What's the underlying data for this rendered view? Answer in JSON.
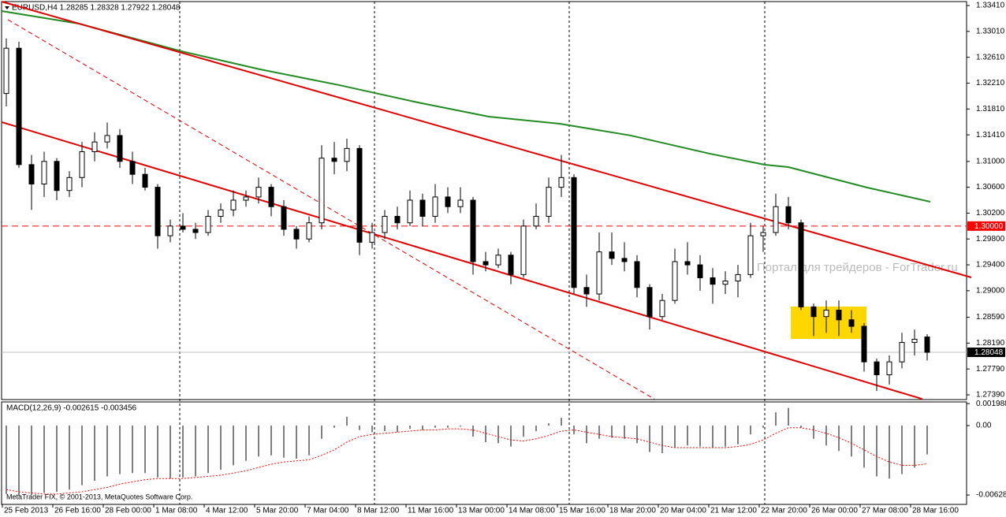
{
  "chart_data": {
    "type": "candlestick",
    "title": "EURUSD,H4 1.28285 1.28328 1.27922 1.28048",
    "watermark": "Портал для трейдеров - ForTrader.ru",
    "footer": "MetaTrader FIX, © 2001-2013, MetaQuotes Software Corp.",
    "ylim": [
      1.27317,
      1.33471
    ],
    "yticks": [
      {
        "value": 1.3341,
        "label": "1.33410"
      },
      {
        "value": 1.3301,
        "label": "1.33010"
      },
      {
        "value": 1.3261,
        "label": "1.32610"
      },
      {
        "value": 1.3221,
        "label": "1.32210"
      },
      {
        "value": 1.3181,
        "label": "1.31810"
      },
      {
        "value": 1.3141,
        "label": "1.31410"
      },
      {
        "value": 1.31,
        "label": "1.31000"
      },
      {
        "value": 1.306,
        "label": "1.30600"
      },
      {
        "value": 1.302,
        "label": "1.30200"
      },
      {
        "value": 1.298,
        "label": "1.29800"
      },
      {
        "value": 1.294,
        "label": "1.29400"
      },
      {
        "value": 1.29,
        "label": "1.29000"
      },
      {
        "value": 1.2859,
        "label": "1.28590"
      },
      {
        "value": 1.2819,
        "label": "1.28190"
      },
      {
        "value": 1.2779,
        "label": "1.27790"
      },
      {
        "value": 1.2739,
        "label": "1.27390"
      }
    ],
    "time_labels": [
      "25 Feb 2013",
      "26 Feb 16:00",
      "28 Feb 00:00",
      "1 Mar 08:00",
      "4 Mar 12:00",
      "5 Mar 20:00",
      "7 Mar 04:00",
      "8 Mar 12:00",
      "11 Mar 16:00",
      "13 Mar 00:00",
      "14 Mar 08:00",
      "15 Mar 16:00",
      "18 Mar 20:00",
      "20 Mar 04:00",
      "21 Mar 12:00",
      "22 Mar 20:00",
      "26 Mar 00:00",
      "27 Mar 08:00",
      "28 Mar 16:00"
    ],
    "candles": [
      [
        1.3205,
        1.329,
        1.3185,
        1.3275
      ],
      [
        1.3275,
        1.3285,
        1.309,
        1.3095
      ],
      [
        1.3095,
        1.311,
        1.3025,
        1.3065
      ],
      [
        1.3065,
        1.3115,
        1.3045,
        1.31
      ],
      [
        1.31,
        1.3105,
        1.304,
        1.3055
      ],
      [
        1.3055,
        1.3085,
        1.3045,
        1.3075
      ],
      [
        1.3075,
        1.313,
        1.306,
        1.3115
      ],
      [
        1.3115,
        1.3145,
        1.31,
        1.313
      ],
      [
        1.313,
        1.316,
        1.312,
        1.314
      ],
      [
        1.314,
        1.315,
        1.309,
        1.31
      ],
      [
        1.31,
        1.3115,
        1.3065,
        1.308
      ],
      [
        1.308,
        1.309,
        1.3055,
        1.306
      ],
      [
        1.306,
        1.3065,
        1.2965,
        1.2985
      ],
      [
        1.2985,
        1.301,
        1.2975,
        1.3
      ],
      [
        1.3,
        1.302,
        1.299,
        1.2995
      ],
      [
        1.2995,
        1.3005,
        1.298,
        1.299
      ],
      [
        1.299,
        1.3025,
        1.2985,
        1.3015
      ],
      [
        1.3015,
        1.3035,
        1.3005,
        1.3025
      ],
      [
        1.3025,
        1.3055,
        1.3015,
        1.304
      ],
      [
        1.304,
        1.3055,
        1.303,
        1.3045
      ],
      [
        1.3045,
        1.3075,
        1.3035,
        1.306
      ],
      [
        1.306,
        1.3065,
        1.3015,
        1.303
      ],
      [
        1.303,
        1.304,
        1.2985,
        1.2995
      ],
      [
        1.2995,
        1.3,
        1.2965,
        1.298
      ],
      [
        1.298,
        1.3015,
        1.2975,
        1.3005
      ],
      [
        1.3005,
        1.3125,
        1.2995,
        1.3105
      ],
      [
        1.3105,
        1.313,
        1.308,
        1.31
      ],
      [
        1.31,
        1.3135,
        1.3085,
        1.312
      ],
      [
        1.312,
        1.3125,
        1.2955,
        1.2975
      ],
      [
        1.2975,
        1.3005,
        1.2965,
        1.299
      ],
      [
        1.299,
        1.3025,
        1.298,
        1.3015
      ],
      [
        1.3015,
        1.303,
        1.2995,
        1.3005
      ],
      [
        1.3005,
        1.3055,
        1.3,
        1.304
      ],
      [
        1.304,
        1.305,
        1.3,
        1.3015
      ],
      [
        1.3015,
        1.3065,
        1.3005,
        1.3045
      ],
      [
        1.3045,
        1.306,
        1.302,
        1.303
      ],
      [
        1.303,
        1.306,
        1.302,
        1.304
      ],
      [
        1.304,
        1.3045,
        1.2925,
        1.2945
      ],
      [
        1.2945,
        1.296,
        1.293,
        1.294
      ],
      [
        1.294,
        1.2965,
        1.2935,
        1.2955
      ],
      [
        1.2955,
        1.296,
        1.291,
        1.2925
      ],
      [
        1.2925,
        1.301,
        1.292,
        1.3
      ],
      [
        1.3,
        1.3035,
        1.2995,
        1.3015
      ],
      [
        1.3015,
        1.3075,
        1.3005,
        1.306
      ],
      [
        1.306,
        1.311,
        1.3045,
        1.3075
      ],
      [
        1.3075,
        1.308,
        1.2895,
        1.2905
      ],
      [
        1.2905,
        1.2925,
        1.2875,
        1.2895
      ],
      [
        1.2895,
        1.299,
        1.2885,
        1.296
      ],
      [
        1.296,
        1.299,
        1.294,
        1.295
      ],
      [
        1.295,
        1.2975,
        1.293,
        1.2945
      ],
      [
        1.2945,
        1.2955,
        1.289,
        1.2905
      ],
      [
        1.2905,
        1.291,
        1.284,
        1.286
      ],
      [
        1.286,
        1.2895,
        1.2855,
        1.2885
      ],
      [
        1.2885,
        1.2965,
        1.288,
        1.2945
      ],
      [
        1.2945,
        1.2975,
        1.2925,
        1.294
      ],
      [
        1.294,
        1.2955,
        1.29,
        1.292
      ],
      [
        1.292,
        1.2935,
        1.288,
        1.291
      ],
      [
        1.291,
        1.293,
        1.2895,
        1.2915
      ],
      [
        1.2915,
        1.294,
        1.289,
        1.2925
      ],
      [
        1.2925,
        1.3005,
        1.292,
        1.2985
      ],
      [
        1.2985,
        1.3,
        1.296,
        1.299
      ],
      [
        1.299,
        1.305,
        1.2985,
        1.303
      ],
      [
        1.303,
        1.3045,
        1.2995,
        1.3005
      ],
      [
        1.3005,
        1.301,
        1.287,
        1.2875
      ],
      [
        1.2875,
        1.288,
        1.283,
        1.286
      ],
      [
        1.286,
        1.2885,
        1.2835,
        1.287
      ],
      [
        1.287,
        1.2885,
        1.283,
        1.2855
      ],
      [
        1.2855,
        1.287,
        1.2835,
        1.2845
      ],
      [
        1.2845,
        1.285,
        1.2775,
        1.279
      ],
      [
        1.279,
        1.2795,
        1.2745,
        1.277
      ],
      [
        1.277,
        1.28,
        1.2755,
        1.279
      ],
      [
        1.279,
        1.2835,
        1.278,
        1.282
      ],
      [
        1.282,
        1.284,
        1.28,
        1.2825
      ],
      [
        1.28285,
        1.28328,
        1.27922,
        1.28048
      ]
    ],
    "up_color": "#ffffff",
    "down_color": "#000000",
    "edge_color": "#000000",
    "ma": {
      "color": "#228b22",
      "x": [
        -0.375,
        5.75,
        13.875,
        20.125,
        26.375,
        32.625,
        38.25,
        43.875,
        49.5,
        55.75,
        60.125,
        62,
        68.25,
        73.25
      ],
      "y": [
        1.33325,
        1.3313,
        1.32703,
        1.32423,
        1.3218,
        1.31911,
        1.31692,
        1.31582,
        1.314,
        1.3112,
        1.30949,
        1.30912,
        1.30595,
        1.30376
      ]
    },
    "trendlines": [
      {
        "color": "#e00000",
        "style": "solid",
        "x": [
          -0.375,
          76.5
        ],
        "y": [
          1.33471,
          1.29206
        ]
      },
      {
        "color": "#e00000",
        "style": "solid",
        "x": [
          -0.375,
          72.625
        ],
        "y": [
          1.31607,
          1.27325
        ]
      },
      {
        "color": "#e00000",
        "style": "dashed",
        "x": [
          0.125,
          51.375
        ],
        "y": [
          1.33191,
          1.27325
        ]
      }
    ],
    "box": {
      "color": "#ffd700",
      "x": [
        62.19,
        68.19
      ],
      "y": [
        1.28255,
        1.28755
      ]
    },
    "price_lines": [
      {
        "value": 1.3,
        "label": "1.30000",
        "color": "#ff0000",
        "style": "dashed"
      },
      {
        "value": 1.28048,
        "label": "1.28048",
        "color": "#c0c0c0",
        "style": "solid"
      }
    ],
    "macd": {
      "title": "MACD(12,26,9) -0.002615 -0.003456",
      "ylim": [
        -0.00714,
        0.00214
      ],
      "yticks": [
        0.001988,
        {
          "value": 0,
          "label": "0.00"
        },
        -0.006289
      ],
      "color": "#000000",
      "signal_color": "#ff0000",
      "values": [
        -0.0062,
        -0.0064,
        -0.0063,
        -0.0061,
        -0.006,
        -0.0058,
        -0.0054,
        -0.005,
        -0.0046,
        -0.0044,
        -0.0043,
        -0.0043,
        -0.0047,
        -0.0048,
        -0.0047,
        -0.0046,
        -0.0043,
        -0.004,
        -0.0036,
        -0.0032,
        -0.0028,
        -0.0027,
        -0.0029,
        -0.003,
        -0.0027,
        -0.0012,
        -0.0002,
        0.0008,
        -0.0004,
        -0.0006,
        -0.0005,
        -0.0006,
        -0.0003,
        -0.0004,
        -0.0002,
        -0.0002,
        -0.0001,
        -0.001,
        -0.0015,
        -0.0016,
        -0.0019,
        -0.001,
        -0.0005,
        0.0002,
        0.0007,
        -0.0008,
        -0.0016,
        -0.0012,
        -0.0011,
        -0.0012,
        -0.0016,
        -0.0024,
        -0.0025,
        -0.002,
        -0.0018,
        -0.0019,
        -0.002,
        -0.0019,
        -0.0017,
        -0.0008,
        -0.0002,
        0.0012,
        0.0016,
        -0.0002,
        -0.0012,
        -0.0018,
        -0.0023,
        -0.0028,
        -0.0038,
        -0.0046,
        -0.0048,
        -0.0044,
        -0.0038,
        -0.002615
      ],
      "signal": [
        -0.0058,
        -0.006,
        -0.0061,
        -0.0062,
        -0.0062,
        -0.0061,
        -0.006,
        -0.0058,
        -0.0056,
        -0.0053,
        -0.0051,
        -0.0049,
        -0.0048,
        -0.0048,
        -0.0048,
        -0.0047,
        -0.0046,
        -0.0045,
        -0.0043,
        -0.0041,
        -0.0038,
        -0.0035,
        -0.0033,
        -0.0032,
        -0.0031,
        -0.0027,
        -0.0022,
        -0.0015,
        -0.001,
        -0.0008,
        -0.0007,
        -0.0006,
        -0.0005,
        -0.0004,
        -0.0004,
        -0.0003,
        -0.0003,
        -0.0004,
        -0.0007,
        -0.001,
        -0.0013,
        -0.0014,
        -0.0012,
        -0.0009,
        -0.0005,
        -0.0004,
        -0.0006,
        -0.0008,
        -0.001,
        -0.0011,
        -0.0012,
        -0.0015,
        -0.0018,
        -0.002,
        -0.002,
        -0.002,
        -0.002,
        -0.002,
        -0.0019,
        -0.0017,
        -0.0013,
        -0.0007,
        -0.0002,
        -0.0002,
        -0.0004,
        -0.0007,
        -0.0011,
        -0.0016,
        -0.0022,
        -0.0028,
        -0.0033,
        -0.0036,
        -0.0036,
        -0.003456
      ]
    }
  }
}
